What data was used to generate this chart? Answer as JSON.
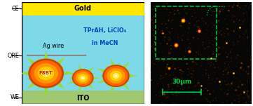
{
  "fig_width": 3.61,
  "fig_height": 1.51,
  "dpi": 100,
  "left_panel": {
    "gold_color": "#FFE800",
    "gold_text": "Gold",
    "solution_color": "#7DD8E8",
    "solution_text1": "TPrAH, LiClO₄",
    "solution_text2": "in MeCN",
    "ito_color": "#A0C870",
    "ito_text": "ITO",
    "ag_wire_text": "Ag wire",
    "f8bt_text": "F8BT",
    "ce_label": "CE",
    "qre_label": "QRE",
    "we_label": "WE"
  },
  "right_panel": {
    "bg_color": "#060604",
    "inset_dash_color": "#00CC44",
    "scalebar_color": "#00CC44",
    "scalebar_text": "30μm"
  }
}
